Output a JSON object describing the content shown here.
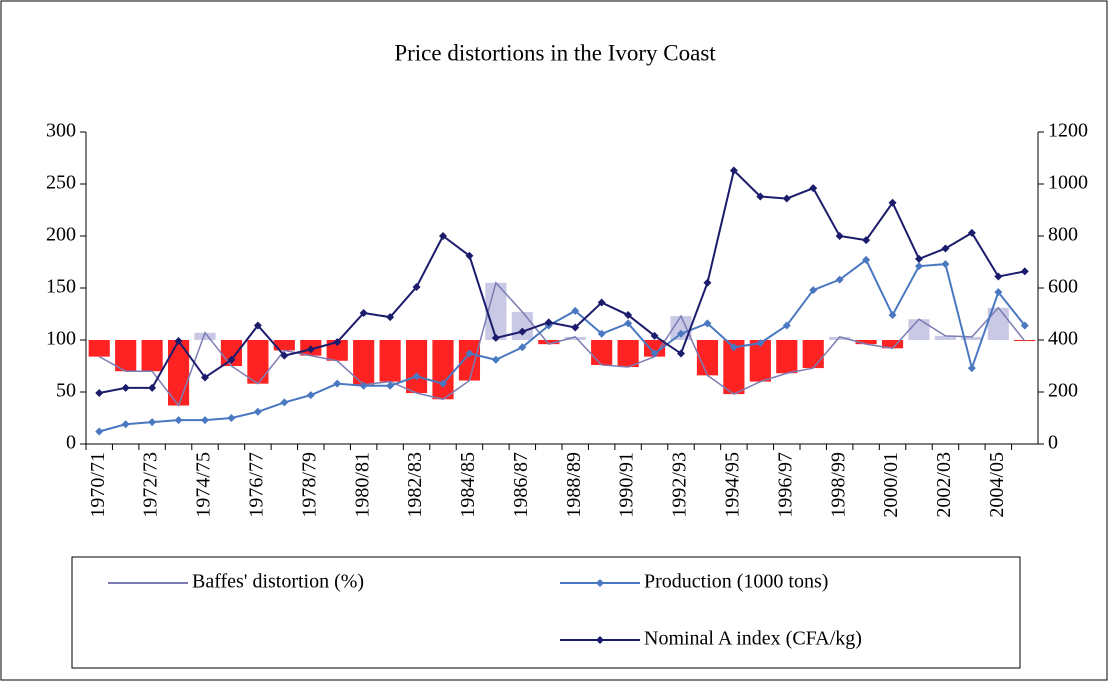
{
  "chart_data": {
    "type": "combo",
    "title": "Price distortions in the Ivory Coast",
    "categories": [
      "1970/71",
      null,
      "1972/73",
      null,
      "1974/75",
      null,
      "1976/77",
      null,
      "1978/79",
      null,
      "1980/81",
      null,
      "1982/83",
      null,
      "1984/85",
      null,
      "1986/87",
      null,
      "1988/89",
      null,
      "1990/91",
      null,
      "1992/93",
      null,
      "1994/95",
      null,
      "1996/97",
      null,
      "1998/99",
      null,
      "2000/01",
      null,
      "2002/03",
      null,
      "2004/05",
      null
    ],
    "series": [
      {
        "name": "Baffes' distortion (%)",
        "color": "#7c7cb4",
        "marker": false,
        "bars": true,
        "bar_base": 100,
        "bar_color_below": "#ff2222",
        "bar_color_above": "#c9c9e6",
        "values": [
          84,
          70,
          70,
          37,
          107,
          75,
          58,
          90,
          85,
          80,
          57,
          60,
          49,
          43,
          61,
          155,
          127,
          96,
          103,
          76,
          74,
          84,
          123,
          66,
          48,
          60,
          68,
          73,
          103,
          96,
          92,
          120,
          104,
          103,
          131,
          99
        ]
      },
      {
        "name": "Production (1000 tons)",
        "color": "#4a78c0",
        "marker": true,
        "bars": false,
        "values": [
          12,
          19,
          21,
          23,
          23,
          25,
          31,
          40,
          47,
          58,
          56,
          56,
          65,
          58,
          87,
          81,
          93,
          114,
          128,
          106,
          116,
          87,
          106,
          116,
          93,
          97,
          114,
          148,
          158,
          177,
          124,
          171,
          173,
          73,
          146,
          114
        ]
      },
      {
        "name": "Nominal A index (CFA/kg)",
        "color": "#1c1c6c",
        "marker": true,
        "bars": false,
        "axis": "y2",
        "values": [
          196,
          216,
          216,
          396,
          256,
          324,
          456,
          340,
          364,
          392,
          504,
          488,
          604,
          800,
          724,
          408,
          432,
          468,
          448,
          544,
          496,
          416,
          348,
          620,
          1052,
          952,
          944,
          984,
          800,
          784,
          928,
          712,
          752,
          812,
          644,
          664
        ]
      }
    ],
    "ylim": [
      0,
      300
    ],
    "yticks": [
      0,
      50,
      100,
      150,
      200,
      250,
      300
    ],
    "y2lim": [
      0,
      1200
    ],
    "y2ticks": [
      0,
      200,
      400,
      600,
      800,
      1000,
      1200
    ]
  }
}
